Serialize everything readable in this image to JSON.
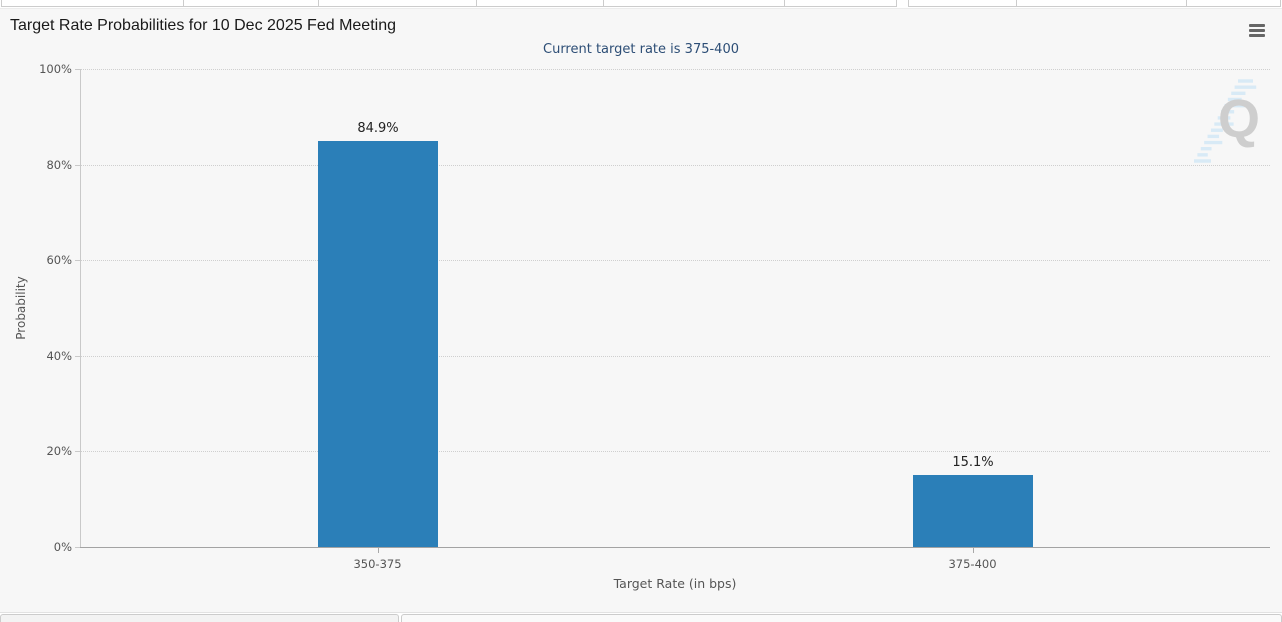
{
  "chart_data": {
    "type": "bar",
    "title": "Target Rate Probabilities for 10 Dec 2025 Fed Meeting",
    "subtitle": "Current target rate is 375-400",
    "categories": [
      "350-375",
      "375-400"
    ],
    "values": [
      84.9,
      15.1
    ],
    "value_labels": [
      "84.9%",
      "15.1%"
    ],
    "xlabel": "Target Rate (in bps)",
    "ylabel": "Probability",
    "ylim": [
      0,
      100
    ],
    "yticks": [
      0,
      20,
      40,
      60,
      80,
      100
    ],
    "ytick_labels": [
      "0%",
      "20%",
      "40%",
      "60%",
      "80%",
      "100%"
    ],
    "bar_color": "#2b7fb8",
    "grid": "dotted horizontal",
    "legend": "none"
  },
  "header": {
    "menu_icon": "hamburger-icon"
  },
  "watermark": {
    "letter": "Q"
  },
  "colors": {
    "panel_background": "#f7f7f7",
    "bar": "#2b7fb8",
    "subtitle_text": "#2d4e76",
    "title_text": "#1a1a1a",
    "axis_text": "#555555"
  }
}
